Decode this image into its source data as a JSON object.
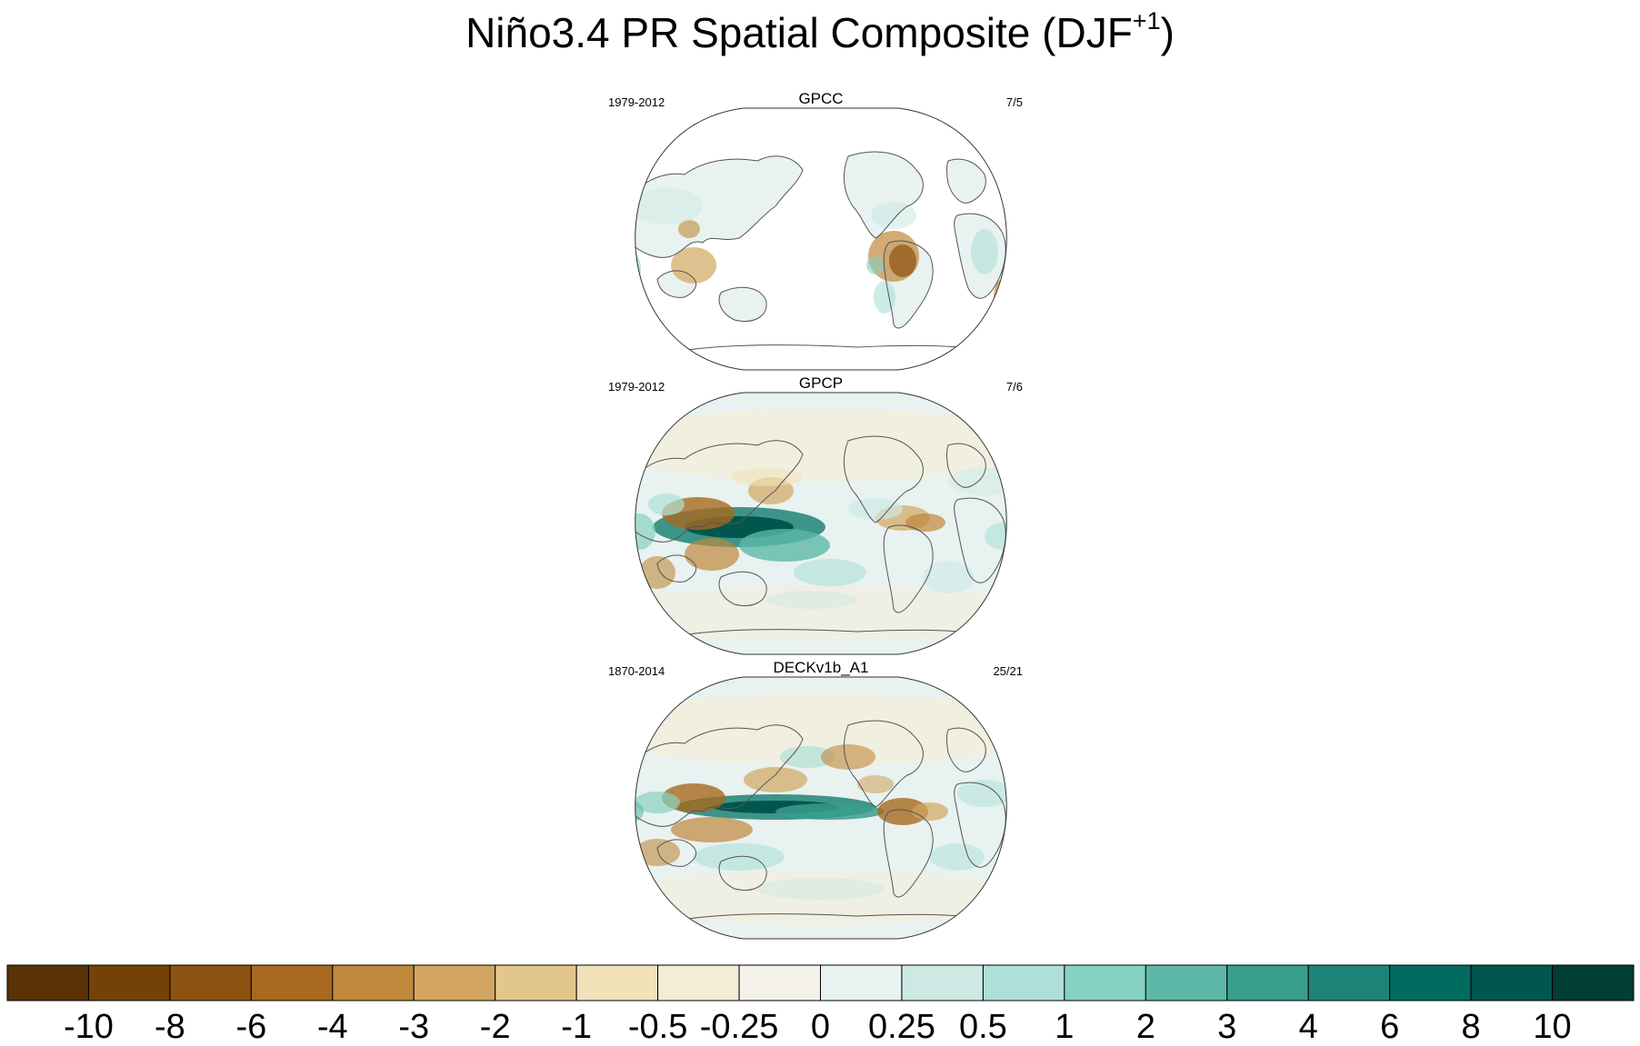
{
  "title": {
    "main": "Niño3.4 PR Spatial Composite (DJF",
    "superscript": "+1",
    "close": ")"
  },
  "panels": [
    {
      "name": "GPCC",
      "period": "1979-2012",
      "count": "7/5",
      "coverage": "land"
    },
    {
      "name": "GPCP",
      "period": "1979-2012",
      "count": "7/6",
      "coverage": "global"
    },
    {
      "name": "DECKv1b_A1",
      "period": "1870-2014",
      "count": "25/21",
      "coverage": "global"
    }
  ],
  "colorbar": {
    "labels": [
      "-10",
      "-8",
      "-6",
      "-4",
      "-3",
      "-2",
      "-1",
      "-0.5",
      "-0.25",
      "0",
      "0.25",
      "0.5",
      "1",
      "2",
      "3",
      "4",
      "6",
      "8",
      "10"
    ],
    "colors": [
      "#5a3208",
      "#744209",
      "#8c5212",
      "#a6691f",
      "#c0883a",
      "#d2a660",
      "#e3c68a",
      "#f1e2ba",
      "#f5ecd5",
      "#f4f1ea",
      "#e8f2f0",
      "#cde9e4",
      "#aee0d7",
      "#86d1c3",
      "#5db8a8",
      "#399d8e",
      "#1e8477",
      "#026b5f",
      "#01574d",
      "#003d33"
    ]
  },
  "chart_data": {
    "type": "heatmap",
    "title": "Niño3.4 PR Spatial Composite (DJF+1)",
    "variable": "PR",
    "projection": "Robinson (Pacific-centered)",
    "levels": [
      -10,
      -8,
      -6,
      -4,
      -3,
      -2,
      -1,
      -0.5,
      -0.25,
      0,
      0.25,
      0.5,
      1,
      2,
      3,
      4,
      6,
      8,
      10
    ],
    "colormap": "brown-white-teal (BrBG)",
    "panels": [
      "GPCC 1979-2012 7/5",
      "GPCP 1979-2012 7/6",
      "DECKv1b_A1 1870-2014 25/21"
    ]
  }
}
